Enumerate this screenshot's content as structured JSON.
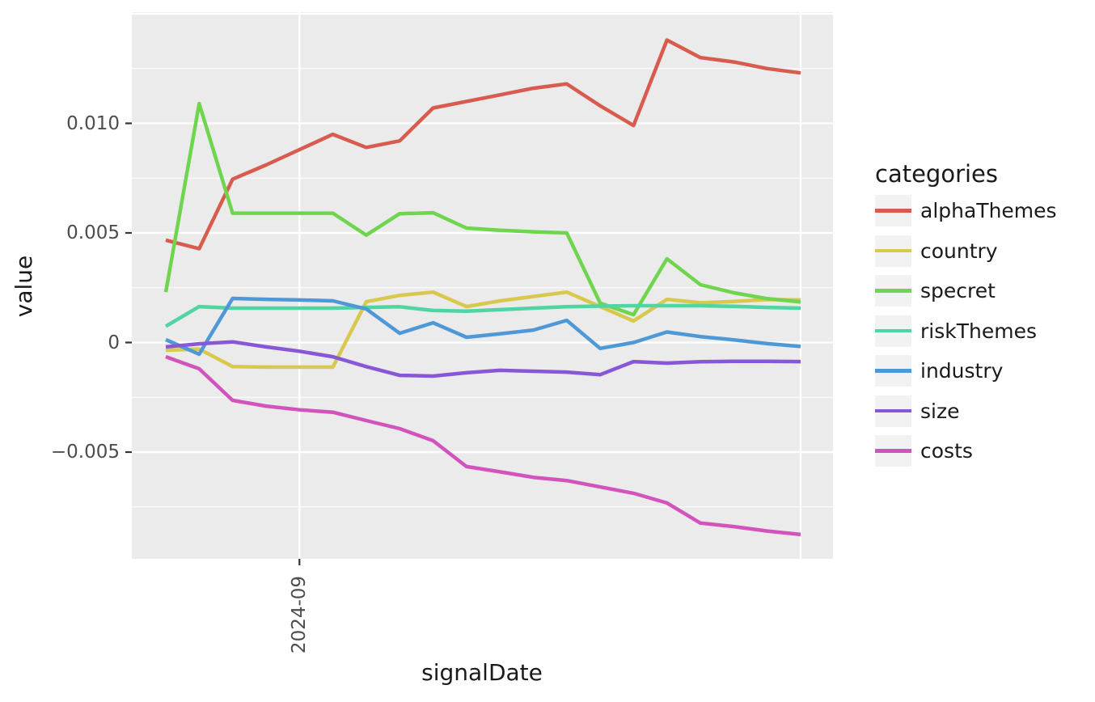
{
  "chart_data": {
    "type": "line",
    "title": "",
    "xlabel": "signalDate",
    "ylabel": "value",
    "legend_title": "categories",
    "legend_position": "right",
    "grid": true,
    "panel_background": "#EBEBEB",
    "gridline_color": "#FFFFFF",
    "legend_key_background": "#F2F2F2",
    "axis_tick_text_color": "#4D4D4D",
    "axis_title_text_color": "#1A1A1A",
    "tick_mark_color": "#333333",
    "ylim": [
      -0.00987,
      0.01507
    ],
    "x": [
      "2024-08-04",
      "2024-08-11",
      "2024-08-18",
      "2024-08-25",
      "2024-09-01",
      "2024-09-08",
      "2024-09-15",
      "2024-09-22",
      "2024-09-29",
      "2024-10-06",
      "2024-10-13",
      "2024-10-20",
      "2024-10-27",
      "2024-11-03",
      "2024-11-10",
      "2024-11-17",
      "2024-11-24",
      "2024-12-01",
      "2024-12-08",
      "2024-12-15"
    ],
    "x_ticks": [
      {
        "index": 4,
        "label": "2024-09"
      }
    ],
    "x_gridline_indices": [
      4,
      19
    ],
    "y_ticks": [
      {
        "value": 0.01,
        "label": "0.010"
      },
      {
        "value": 0.005,
        "label": "0.005"
      },
      {
        "value": 0,
        "label": "0"
      },
      {
        "value": -0.005,
        "label": "−0.005"
      }
    ],
    "y_major_gridlines": [
      0.015,
      0.01,
      0.005,
      0,
      -0.005
    ],
    "y_minor_gridlines": [
      0.0125,
      0.0075,
      0.0025,
      -0.0025,
      -0.0075
    ],
    "series": [
      {
        "name": "alphaThemes",
        "color": "#D85B50",
        "values": [
          0.00467,
          0.00428,
          0.00745,
          0.0081,
          0.0088,
          0.0095,
          0.0089,
          0.0092,
          0.0107,
          0.011,
          0.0113,
          0.0116,
          0.0118,
          0.0108,
          0.0099,
          0.0138,
          0.013,
          0.0128,
          0.0125,
          0.0123
        ]
      },
      {
        "name": "country",
        "color": "#D9C84E",
        "values": [
          -0.00035,
          -0.0003,
          -0.0011,
          -0.00112,
          -0.00112,
          -0.00112,
          0.00186,
          0.00215,
          0.0023,
          0.00164,
          0.0019,
          0.0021,
          0.0023,
          0.00164,
          0.00098,
          0.00197,
          0.00181,
          0.00187,
          0.00196,
          0.00194
        ]
      },
      {
        "name": "specret",
        "color": "#6FD54F",
        "values": [
          0.0023,
          0.0109,
          0.0059,
          0.0059,
          0.0059,
          0.0059,
          0.0049,
          0.00588,
          0.00592,
          0.00522,
          0.00512,
          0.00505,
          0.005,
          0.0018,
          0.00127,
          0.00382,
          0.00264,
          0.00227,
          0.002,
          0.00185
        ]
      },
      {
        "name": "riskThemes",
        "color": "#50D5A2",
        "values": [
          0.00074,
          0.00164,
          0.00157,
          0.00157,
          0.00157,
          0.00157,
          0.0016,
          0.00163,
          0.00146,
          0.00143,
          0.0015,
          0.00157,
          0.00163,
          0.00166,
          0.00168,
          0.00168,
          0.00168,
          0.00165,
          0.0016,
          0.00157
        ]
      },
      {
        "name": "industry",
        "color": "#4F98D8",
        "values": [
          0.00013,
          -0.00053,
          0.00201,
          0.00197,
          0.00194,
          0.0019,
          0.00153,
          0.00042,
          0.0009,
          0.00024,
          0.0004,
          0.00057,
          0.00101,
          -0.00027,
          0.0,
          0.00048,
          0.00027,
          0.00012,
          -5e-05,
          -0.00018
        ]
      },
      {
        "name": "size",
        "color": "#8857D6",
        "values": [
          -0.0002,
          -6e-05,
          3e-05,
          -0.0002,
          -0.0004,
          -0.00065,
          -0.0011,
          -0.0015,
          -0.00153,
          -0.00138,
          -0.00127,
          -0.00131,
          -0.00135,
          -0.00147,
          -0.00087,
          -0.00094,
          -0.00088,
          -0.00086,
          -0.00086,
          -0.00087
        ]
      },
      {
        "name": "costs",
        "color": "#D253BC",
        "values": [
          -0.00065,
          -0.0012,
          -0.00264,
          -0.0029,
          -0.00307,
          -0.00318,
          -0.00356,
          -0.00393,
          -0.00448,
          -0.00566,
          -0.0059,
          -0.00615,
          -0.0063,
          -0.00659,
          -0.00688,
          -0.00732,
          -0.00824,
          -0.0084,
          -0.0086,
          -0.00876
        ]
      }
    ]
  }
}
